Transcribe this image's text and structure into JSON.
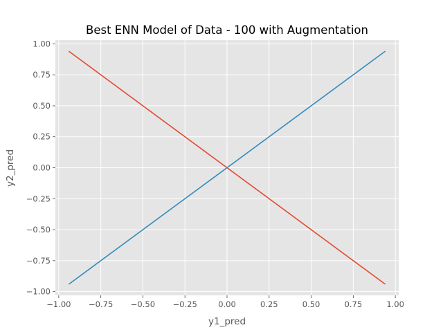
{
  "chart_data": {
    "type": "line",
    "title": "Best ENN Model of Data - 100 with Augmentation",
    "xlabel": "y1_pred",
    "ylabel": "y2_pred",
    "xlim": [
      -1.02,
      1.02
    ],
    "ylim": [
      -1.03,
      1.03
    ],
    "xticks": [
      -1.0,
      -0.75,
      -0.5,
      -0.25,
      0.0,
      0.25,
      0.5,
      0.75,
      1.0
    ],
    "xtick_labels": [
      "−1.00",
      "−0.75",
      "−0.50",
      "−0.25",
      "0.00",
      "0.25",
      "0.50",
      "0.75",
      "1.00"
    ],
    "yticks": [
      1.0,
      0.75,
      0.5,
      0.25,
      0.0,
      -0.25,
      -0.5,
      -0.75,
      -1.0
    ],
    "ytick_labels": [
      "1.00",
      "0.75",
      "0.50",
      "0.25",
      "0.00",
      "−0.25",
      "−0.50",
      "−0.75",
      "−1.00"
    ],
    "grid": true,
    "background": "#e5e5e5",
    "series": [
      {
        "color": "#348abd",
        "x": [
          -0.94,
          0.94
        ],
        "y": [
          -0.94,
          0.94
        ]
      },
      {
        "color": "#e24a33",
        "x": [
          -0.94,
          0.94
        ],
        "y": [
          0.94,
          -0.94
        ]
      }
    ]
  }
}
